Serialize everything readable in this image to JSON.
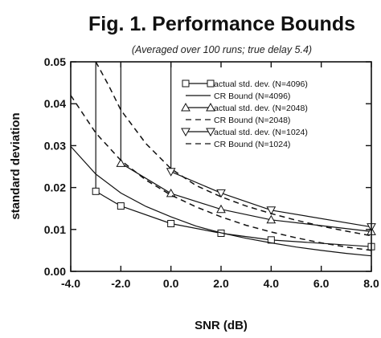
{
  "chart_data": {
    "type": "line",
    "title": "Fig. 1. Performance Bounds",
    "subtitle": "(Averaged over 100 runs; true delay 5.4)",
    "xlabel": "SNR (dB)",
    "ylabel": "standard deviation",
    "xlim": [
      -4.0,
      8.0
    ],
    "ylim": [
      0.0,
      0.05
    ],
    "xticks": [
      -4.0,
      -2.0,
      0.0,
      2.0,
      4.0,
      6.0,
      8.0
    ],
    "xtick_labels": [
      "-4.0",
      "-2.0",
      "0.0",
      "2.0",
      "4.0",
      "6.0",
      "8.0"
    ],
    "yticks": [
      0.0,
      0.01,
      0.02,
      0.03,
      0.04,
      0.05
    ],
    "ytick_labels": [
      "0.00",
      "0.01",
      "0.02",
      "0.03",
      "0.04",
      "0.05"
    ],
    "grid": false,
    "legend_position": "top-right",
    "series": [
      {
        "name": "actual std. dev. (N=4096)",
        "style": "solid",
        "marker": "square",
        "x": [
          -3,
          -2,
          0,
          2,
          4,
          8
        ],
        "y": [
          0.0191,
          0.0156,
          0.0114,
          0.0091,
          0.0075,
          0.0059
        ],
        "spikes": [
          {
            "x": -3,
            "from": 0.0191,
            "to": 0.05
          }
        ]
      },
      {
        "name": "CR Bound (N=4096)",
        "style": "solid",
        "marker": "none",
        "x": [
          -4,
          -3,
          -2,
          -1,
          0,
          1,
          2,
          3,
          4,
          5,
          6,
          7,
          8
        ],
        "y": [
          0.0298,
          0.0232,
          0.0187,
          0.0155,
          0.013,
          0.0108,
          0.0092,
          0.0079,
          0.0068,
          0.0058,
          0.005,
          0.0043,
          0.0037
        ]
      },
      {
        "name": "actual std. dev. (N=2048)",
        "style": "solid",
        "marker": "triangle-up",
        "x": [
          -2,
          0,
          2,
          4,
          8
        ],
        "y": [
          0.0258,
          0.0186,
          0.0148,
          0.0123,
          0.0095
        ],
        "spikes": [
          {
            "x": -2,
            "from": 0.0258,
            "to": 0.05
          }
        ]
      },
      {
        "name": "CR Bound (N=2048)",
        "style": "dashed",
        "marker": "none",
        "x": [
          -4,
          -3,
          -2,
          -1,
          0,
          1,
          2,
          3,
          4,
          5,
          6,
          7,
          8
        ],
        "y": [
          0.042,
          0.033,
          0.0265,
          0.0218,
          0.0182,
          0.0154,
          0.013,
          0.011,
          0.0094,
          0.008,
          0.0068,
          0.0058,
          0.005
        ]
      },
      {
        "name": "actual std. dev. (N=1024)",
        "style": "solid",
        "marker": "triangle-down",
        "x": [
          0,
          2,
          4,
          8
        ],
        "y": [
          0.0238,
          0.0187,
          0.0146,
          0.0106
        ],
        "spikes": [
          {
            "x": 0,
            "from": 0.0238,
            "to": 0.05
          }
        ]
      },
      {
        "name": "CR Bound (N=1024)",
        "style": "dashed",
        "marker": "none",
        "x": [
          -3.0,
          -2.5,
          -2,
          -1,
          0,
          1,
          2,
          3,
          4,
          5,
          6,
          7,
          8
        ],
        "y": [
          0.05,
          0.0445,
          0.0385,
          0.0305,
          0.0245,
          0.0205,
          0.0178,
          0.0156,
          0.0138,
          0.0122,
          0.0108,
          0.0096,
          0.0085
        ]
      }
    ]
  }
}
